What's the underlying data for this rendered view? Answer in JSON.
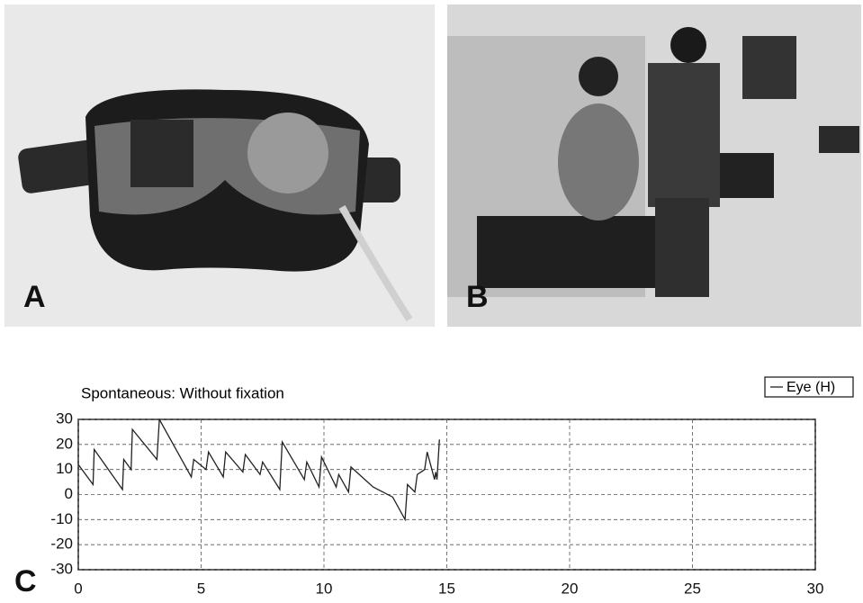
{
  "figure": {
    "labels": [
      "A",
      "B",
      "C"
    ]
  },
  "chart_data": {
    "type": "line",
    "title": "Spontaneous: Without fixation",
    "series": [
      {
        "name": "Eye (H)",
        "color": "#222222",
        "x": [
          0,
          0.6,
          0.65,
          1.8,
          1.85,
          2.15,
          2.2,
          3.2,
          3.3,
          4.6,
          4.7,
          5.2,
          5.3,
          5.9,
          6.0,
          6.7,
          6.8,
          7.4,
          7.5,
          8.2,
          8.3,
          9.2,
          9.3,
          9.8,
          9.9,
          10.5,
          10.6,
          11.0,
          11.1,
          12.0,
          12.8,
          13.3,
          13.4,
          13.7,
          13.8,
          14.1,
          14.2,
          14.5,
          14.55,
          14.6,
          14.7
        ],
        "values": [
          12,
          4,
          18,
          2,
          14,
          10,
          26,
          14,
          30,
          7,
          14,
          10,
          17,
          7,
          17,
          9,
          16,
          8,
          13,
          2,
          21,
          6,
          13,
          3,
          15,
          3,
          8,
          1,
          11,
          3,
          -1,
          -10,
          4,
          1,
          8,
          10,
          17,
          6,
          9,
          6,
          22
        ]
      }
    ],
    "xlim": [
      0,
      30
    ],
    "xticks": [
      0,
      5,
      10,
      15,
      20,
      25,
      30
    ],
    "ylim": [
      -30,
      30
    ],
    "yticks": [
      -30,
      -20,
      -10,
      0,
      10,
      20,
      30
    ],
    "grid": true,
    "legend": "top-right"
  }
}
